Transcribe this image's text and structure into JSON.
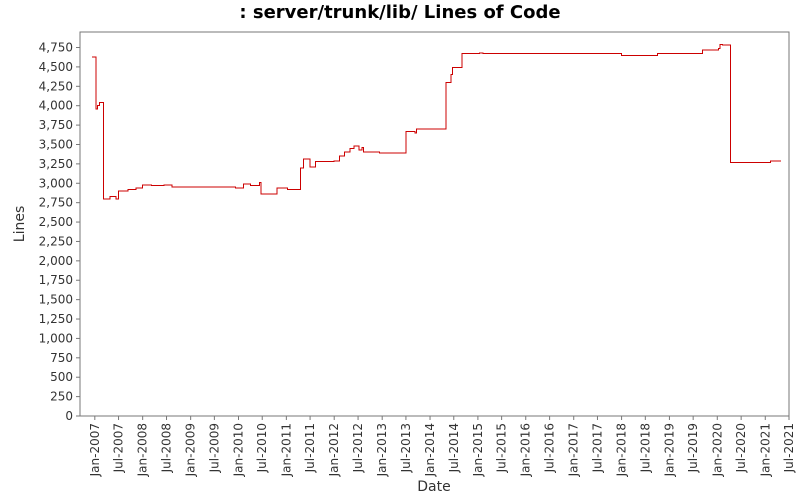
{
  "chart_data": {
    "type": "line",
    "title": ": server/trunk/lib/ Lines of Code",
    "xlabel": "Date",
    "ylabel": "Lines",
    "xlim": [
      "2006-09-10",
      "2021-07-01"
    ],
    "ylim": [
      0,
      4950
    ],
    "yticks": [
      0,
      250,
      500,
      750,
      1000,
      1250,
      1500,
      1750,
      2000,
      2250,
      2500,
      2750,
      3000,
      3250,
      3500,
      3750,
      4000,
      4250,
      4500,
      4750
    ],
    "ytick_labels": [
      "0",
      "250",
      "500",
      "750",
      "1,000",
      "1,250",
      "1,500",
      "1,750",
      "2,000",
      "2,250",
      "2,500",
      "2,750",
      "3,000",
      "3,250",
      "3,500",
      "3,750",
      "4,000",
      "4,250",
      "4,500",
      "4,750"
    ],
    "xticks": [
      "2007-01-01",
      "2007-07-01",
      "2008-01-01",
      "2008-07-01",
      "2009-01-01",
      "2009-07-01",
      "2010-01-01",
      "2010-07-01",
      "2011-01-01",
      "2011-07-01",
      "2012-01-01",
      "2012-07-01",
      "2013-01-01",
      "2013-07-01",
      "2014-01-01",
      "2014-07-01",
      "2015-01-01",
      "2015-07-01",
      "2016-01-01",
      "2016-07-01",
      "2017-01-01",
      "2017-07-01",
      "2018-01-01",
      "2018-07-01",
      "2019-01-01",
      "2019-07-01",
      "2020-01-01",
      "2020-07-01",
      "2021-01-01",
      "2021-07-01"
    ],
    "xtick_labels": [
      "Jan-2007",
      "Jul-2007",
      "Jan-2008",
      "Jul-2008",
      "Jan-2009",
      "Jul-2009",
      "Jan-2010",
      "Jul-2010",
      "Jan-2011",
      "Jul-2011",
      "Jan-2012",
      "Jul-2012",
      "Jan-2013",
      "Jul-2013",
      "Jan-2014",
      "Jul-2014",
      "Jan-2015",
      "Jul-2015",
      "Jan-2016",
      "Jul-2016",
      "Jan-2017",
      "Jul-2017",
      "Jan-2018",
      "Jul-2018",
      "Jan-2019",
      "Jul-2019",
      "Jan-2020",
      "Jul-2020",
      "Jan-2021",
      "Jul-2021"
    ],
    "grid": false,
    "series": [
      {
        "color": "#cc0000",
        "step": true,
        "points": [
          [
            "2006-12-10",
            4630
          ],
          [
            "2007-01-10",
            3960
          ],
          [
            "2007-01-20",
            4000
          ],
          [
            "2007-02-05",
            4040
          ],
          [
            "2007-03-10",
            2800
          ],
          [
            "2007-04-25",
            2830
          ],
          [
            "2007-06-10",
            2800
          ],
          [
            "2007-07-01",
            2900
          ],
          [
            "2007-09-10",
            2920
          ],
          [
            "2007-11-10",
            2940
          ],
          [
            "2008-01-01",
            2980
          ],
          [
            "2008-03-10",
            2970
          ],
          [
            "2008-06-10",
            2980
          ],
          [
            "2008-08-10",
            2950
          ],
          [
            "2009-12-10",
            2940
          ],
          [
            "2010-02-10",
            2990
          ],
          [
            "2010-04-01",
            2970
          ],
          [
            "2010-06-10",
            3010
          ],
          [
            "2010-06-20",
            2860
          ],
          [
            "2010-10-20",
            2940
          ],
          [
            "2011-01-10",
            2920
          ],
          [
            "2011-04-20",
            3200
          ],
          [
            "2011-05-10",
            3310
          ],
          [
            "2011-07-01",
            3210
          ],
          [
            "2011-08-10",
            3280
          ],
          [
            "2012-01-01",
            3290
          ],
          [
            "2012-02-10",
            3350
          ],
          [
            "2012-03-20",
            3400
          ],
          [
            "2012-05-01",
            3450
          ],
          [
            "2012-06-01",
            3480
          ],
          [
            "2012-07-10",
            3430
          ],
          [
            "2012-08-01",
            3460
          ],
          [
            "2012-08-10",
            3400
          ],
          [
            "2012-12-10",
            3390
          ],
          [
            "2013-07-01",
            3670
          ],
          [
            "2013-09-10",
            3650
          ],
          [
            "2013-09-20",
            3700
          ],
          [
            "2014-05-01",
            4300
          ],
          [
            "2014-06-10",
            4400
          ],
          [
            "2014-06-20",
            4490
          ],
          [
            "2014-09-01",
            4670
          ],
          [
            "2015-01-15",
            4680
          ],
          [
            "2015-02-10",
            4670
          ],
          [
            "2018-01-01",
            4650
          ],
          [
            "2018-10-01",
            4670
          ],
          [
            "2019-09-10",
            4720
          ],
          [
            "2020-01-10",
            4740
          ],
          [
            "2020-01-20",
            4790
          ],
          [
            "2020-02-10",
            4780
          ],
          [
            "2020-04-10",
            3270
          ],
          [
            "2021-02-10",
            3290
          ],
          [
            "2021-05-01",
            3290
          ]
        ]
      }
    ]
  }
}
